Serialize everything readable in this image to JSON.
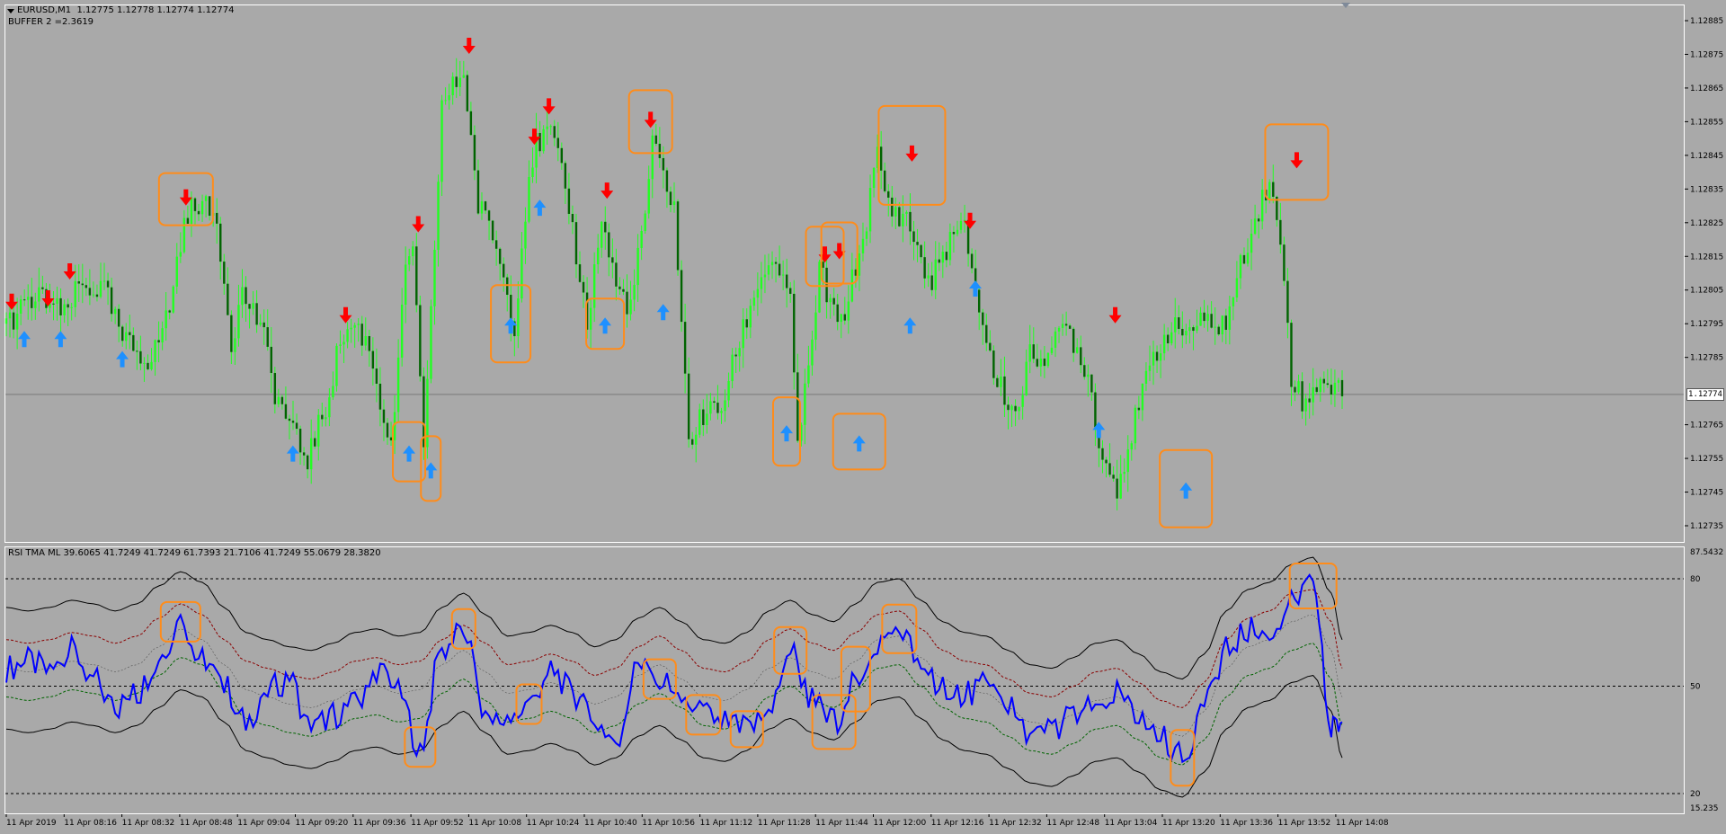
{
  "header": {
    "symbol_line": "EURUSD,M1  1.12775 1.12778 1.12774 1.12774",
    "buffer_line": "BUFFER 2 =2.3619",
    "indicator_line": "RSI TMA ML 39.6065 41.7249 41.7249 61.7393 21.7106 41.7249 55.0679 28.3820"
  },
  "current_price_label": "1.12774",
  "colors": {
    "background": "#a9a9a9",
    "candle": "#22ff22",
    "candle_bear": "#006400",
    "sell_arrow": "#ff0000",
    "buy_arrow": "#1e90ff",
    "highlight_box": "#ff8c1a",
    "rsi_line": "#0000ff",
    "upper_dotted": "#8b0000",
    "lower_dotted": "#006400",
    "band": "#000000"
  },
  "icons": {
    "sell": "arrow-down-icon",
    "buy": "arrow-up-icon"
  },
  "chart_data": [
    {
      "type": "line",
      "subtype": "candlestick",
      "title": "EURUSD,M1",
      "y_ticks": [
        "1.12885",
        "1.12875",
        "1.12865",
        "1.12855",
        "1.12845",
        "1.12835",
        "1.12825",
        "1.12815",
        "1.12805",
        "1.12795",
        "1.12785",
        "1.12765",
        "1.12755",
        "1.12745",
        "1.12735"
      ],
      "y_tick_values": [
        1.12885,
        1.12875,
        1.12865,
        1.12855,
        1.12845,
        1.12835,
        1.12825,
        1.12815,
        1.12805,
        1.12795,
        1.12785,
        1.12765,
        1.12755,
        1.12745,
        1.12735
      ],
      "ylim": [
        1.12731,
        1.12889
      ],
      "current_price": 1.12774,
      "x": [
        "08:00",
        "08:05",
        "08:10",
        "08:16",
        "08:20",
        "08:27",
        "08:32",
        "08:40",
        "08:45",
        "08:48",
        "08:52",
        "08:58",
        "09:02",
        "09:05",
        "09:10",
        "09:14",
        "09:20",
        "09:23",
        "09:28",
        "09:32",
        "09:36",
        "09:40",
        "09:46",
        "09:50",
        "09:52",
        "09:55",
        "10:00",
        "10:06",
        "10:10",
        "10:14",
        "10:20",
        "10:24",
        "10:26",
        "10:30",
        "10:35",
        "10:40",
        "10:44",
        "10:48",
        "10:52",
        "10:56",
        "10:58",
        "11:04",
        "11:08",
        "11:12",
        "11:17",
        "11:22",
        "11:28",
        "11:32",
        "11:36",
        "11:38",
        "11:42",
        "11:44",
        "11:48",
        "11:50",
        "11:56",
        "12:00",
        "12:03",
        "12:08",
        "12:12",
        "12:14",
        "12:20",
        "12:24",
        "12:28",
        "12:32",
        "12:38",
        "12:42",
        "12:48",
        "12:52",
        "12:58",
        "13:02",
        "13:06",
        "13:12",
        "13:16",
        "13:20",
        "13:24",
        "13:30",
        "13:36",
        "13:42",
        "13:48",
        "13:52",
        "13:54",
        "13:58",
        "14:02",
        "14:05",
        "14:08"
      ],
      "price": [
        1.12795,
        1.128,
        1.12803,
        1.12797,
        1.12806,
        1.12805,
        1.1279,
        1.12784,
        1.128,
        1.1282,
        1.12832,
        1.12826,
        1.1279,
        1.12804,
        1.12795,
        1.12775,
        1.1276,
        1.12755,
        1.1277,
        1.1279,
        1.12795,
        1.12788,
        1.12757,
        1.1281,
        1.1282,
        1.12755,
        1.1286,
        1.1287,
        1.1283,
        1.12822,
        1.12795,
        1.1284,
        1.12848,
        1.12852,
        1.1283,
        1.12795,
        1.12826,
        1.12806,
        1.128,
        1.12828,
        1.12848,
        1.1283,
        1.1276,
        1.12768,
        1.1277,
        1.1279,
        1.1281,
        1.12814,
        1.128,
        1.1276,
        1.12788,
        1.12812,
        1.12797,
        1.12795,
        1.1282,
        1.12845,
        1.1283,
        1.12826,
        1.12815,
        1.12806,
        1.1282,
        1.12823,
        1.128,
        1.1278,
        1.12768,
        1.12785,
        1.12787,
        1.12795,
        1.1278,
        1.12755,
        1.12747,
        1.1277,
        1.12785,
        1.12793,
        1.12793,
        1.12795,
        1.12795,
        1.1282,
        1.12838,
        1.1281,
        1.1278,
        1.1277,
        1.1278,
        1.12776,
        1.12774
      ],
      "sell_signals": [
        {
          "x": "08:00",
          "y": 1.12801
        },
        {
          "x": "08:10",
          "y": 1.12802
        },
        {
          "x": "08:16",
          "y": 1.1281
        },
        {
          "x": "08:48",
          "y": 1.12832
        },
        {
          "x": "09:32",
          "y": 1.12797
        },
        {
          "x": "09:52",
          "y": 1.12824
        },
        {
          "x": "10:06",
          "y": 1.12877
        },
        {
          "x": "10:24",
          "y": 1.1285
        },
        {
          "x": "10:28",
          "y": 1.12859
        },
        {
          "x": "10:44",
          "y": 1.12834
        },
        {
          "x": "10:56",
          "y": 1.12855
        },
        {
          "x": "11:44",
          "y": 1.12815
        },
        {
          "x": "11:48",
          "y": 1.12816
        },
        {
          "x": "12:08",
          "y": 1.12845
        },
        {
          "x": "12:24",
          "y": 1.12825
        },
        {
          "x": "13:04",
          "y": 1.12797
        },
        {
          "x": "13:54",
          "y": 1.12843
        }
      ],
      "buy_signals": [
        {
          "x": "08:00",
          "y": 1.12791
        },
        {
          "x": "08:10",
          "y": 1.12791
        },
        {
          "x": "08:27",
          "y": 1.12785
        },
        {
          "x": "09:14",
          "y": 1.12757
        },
        {
          "x": "09:46",
          "y": 1.12757
        },
        {
          "x": "09:52",
          "y": 1.12752
        },
        {
          "x": "10:14",
          "y": 1.12795
        },
        {
          "x": "10:22",
          "y": 1.1283
        },
        {
          "x": "10:40",
          "y": 1.12795
        },
        {
          "x": "10:56",
          "y": 1.12799
        },
        {
          "x": "11:30",
          "y": 1.12763
        },
        {
          "x": "11:50",
          "y": 1.1276
        },
        {
          "x": "12:04",
          "y": 1.12795
        },
        {
          "x": "12:22",
          "y": 1.12806
        },
        {
          "x": "12:56",
          "y": 1.12764
        },
        {
          "x": "13:20",
          "y": 1.12746
        }
      ],
      "x_tick_labels": [
        "11 Apr 2019",
        "11 Apr 08:16",
        "11 Apr 08:32",
        "11 Apr 08:48",
        "11 Apr 09:04",
        "11 Apr 09:20",
        "11 Apr 09:36",
        "11 Apr 09:52",
        "11 Apr 10:08",
        "11 Apr 10:24",
        "11 Apr 10:40",
        "11 Apr 10:56",
        "11 Apr 11:12",
        "11 Apr 11:28",
        "11 Apr 11:44",
        "11 Apr 12:00",
        "11 Apr 12:16",
        "11 Apr 12:32",
        "11 Apr 12:48",
        "11 Apr 13:04",
        "11 Apr 13:20",
        "11 Apr 13:36",
        "11 Apr 13:52",
        "11 Apr 14:08"
      ],
      "grid": false
    },
    {
      "type": "line",
      "title": "RSI TMA ML",
      "ylim": [
        15.235,
        87.5432
      ],
      "y_max_label": "87.5432",
      "y_min_label": "15.235",
      "levels": [
        {
          "value": 80,
          "label": "80"
        },
        {
          "value": 50,
          "label": "50"
        },
        {
          "value": 20,
          "label": "20"
        }
      ],
      "x": [
        "08:00",
        "08:06",
        "08:12",
        "08:18",
        "08:24",
        "08:30",
        "08:36",
        "08:42",
        "08:48",
        "08:54",
        "09:00",
        "09:06",
        "09:12",
        "09:18",
        "09:24",
        "09:30",
        "09:36",
        "09:42",
        "09:48",
        "09:54",
        "10:00",
        "10:06",
        "10:12",
        "10:18",
        "10:24",
        "10:30",
        "10:36",
        "10:42",
        "10:48",
        "10:54",
        "11:00",
        "11:06",
        "11:12",
        "11:18",
        "11:24",
        "11:30",
        "11:36",
        "11:42",
        "11:48",
        "11:54",
        "12:00",
        "12:06",
        "12:12",
        "12:18",
        "12:24",
        "12:30",
        "12:36",
        "12:42",
        "12:48",
        "12:54",
        "13:00",
        "13:06",
        "13:12",
        "13:18",
        "13:24",
        "13:30",
        "13:36",
        "13:42",
        "13:48",
        "13:54",
        "14:00",
        "14:05",
        "14:08"
      ],
      "series": [
        {
          "values": [
            55,
            57,
            54,
            60,
            52,
            44,
            48,
            58,
            68,
            58,
            50,
            40,
            49,
            52,
            38,
            42,
            45,
            55,
            48,
            33,
            60,
            66,
            42,
            39,
            45,
            55,
            48,
            40,
            35,
            55,
            52,
            46,
            42,
            40,
            38,
            42,
            60,
            46,
            40,
            52,
            62,
            66,
            56,
            50,
            48,
            50,
            44,
            35,
            38,
            42,
            44,
            48,
            40,
            36,
            30,
            44,
            60,
            66,
            64,
            74,
            78,
            38,
            40
          ]
        },
        {
          "values": [
            55,
            54,
            55,
            57,
            56,
            54,
            56,
            61,
            66,
            63,
            56,
            49,
            47,
            45,
            44,
            46,
            49,
            50,
            48,
            49,
            56,
            60,
            54,
            48,
            49,
            51,
            49,
            45,
            47,
            53,
            56,
            52,
            47,
            46,
            49,
            55,
            58,
            54,
            52,
            57,
            63,
            64,
            58,
            52,
            49,
            48,
            44,
            40,
            39,
            42,
            46,
            47,
            43,
            38,
            36,
            43,
            55,
            61,
            63,
            68,
            70,
            60,
            47
          ]
        },
        {
          "values": [
            72,
            71,
            72,
            74,
            73,
            71,
            73,
            78,
            82,
            79,
            72,
            65,
            63,
            61,
            60,
            62,
            65,
            66,
            64,
            65,
            72,
            76,
            70,
            64,
            65,
            67,
            65,
            61,
            63,
            69,
            72,
            68,
            63,
            62,
            65,
            71,
            74,
            70,
            68,
            73,
            79,
            80,
            74,
            68,
            65,
            64,
            60,
            56,
            55,
            58,
            62,
            63,
            59,
            54,
            52,
            59,
            71,
            77,
            79,
            84,
            86,
            76,
            63
          ]
        },
        {
          "values": [
            63,
            62,
            63,
            65,
            64,
            62,
            64,
            69,
            73,
            70,
            63,
            57,
            55,
            53,
            52,
            54,
            57,
            58,
            56,
            57,
            63,
            67,
            62,
            56,
            57,
            59,
            57,
            53,
            55,
            61,
            64,
            60,
            55,
            54,
            57,
            63,
            66,
            62,
            60,
            65,
            70,
            71,
            66,
            60,
            57,
            56,
            52,
            48,
            47,
            50,
            54,
            55,
            51,
            46,
            44,
            51,
            63,
            69,
            71,
            76,
            77,
            68,
            55
          ]
        },
        {
          "values": [
            47,
            46,
            47,
            49,
            48,
            46,
            48,
            53,
            58,
            56,
            49,
            41,
            39,
            37,
            36,
            38,
            41,
            42,
            40,
            41,
            48,
            52,
            46,
            40,
            41,
            43,
            41,
            37,
            39,
            45,
            48,
            44,
            39,
            38,
            41,
            47,
            50,
            46,
            44,
            49,
            55,
            56,
            50,
            44,
            41,
            40,
            36,
            32,
            31,
            34,
            38,
            39,
            35,
            30,
            28,
            35,
            47,
            53,
            55,
            60,
            62,
            52,
            39
          ]
        },
        {
          "values": [
            38,
            37,
            38,
            40,
            39,
            37,
            39,
            44,
            49,
            47,
            40,
            32,
            30,
            28,
            27,
            29,
            32,
            33,
            31,
            32,
            39,
            43,
            37,
            31,
            32,
            34,
            32,
            28,
            30,
            36,
            39,
            35,
            30,
            29,
            32,
            38,
            41,
            37,
            35,
            40,
            46,
            47,
            41,
            35,
            32,
            31,
            27,
            23,
            22,
            25,
            29,
            30,
            26,
            21,
            19,
            26,
            38,
            44,
            46,
            51,
            53,
            43,
            30
          ]
        }
      ],
      "x_tick_labels": [
        "11 Apr 2019",
        "11 Apr 08:16",
        "11 Apr 08:32",
        "11 Apr 08:48",
        "11 Apr 09:04",
        "11 Apr 09:20",
        "11 Apr 09:36",
        "11 Apr 09:52",
        "11 Apr 10:08",
        "11 Apr 10:24",
        "11 Apr 10:40",
        "11 Apr 10:56",
        "11 Apr 11:12",
        "11 Apr 11:28",
        "11 Apr 11:44",
        "11 Apr 12:00",
        "11 Apr 12:16",
        "11 Apr 12:32",
        "11 Apr 12:48",
        "11 Apr 13:04",
        "11 Apr 13:20",
        "11 Apr 13:36",
        "11 Apr 13:52",
        "11 Apr 14:08"
      ],
      "grid": false
    }
  ]
}
